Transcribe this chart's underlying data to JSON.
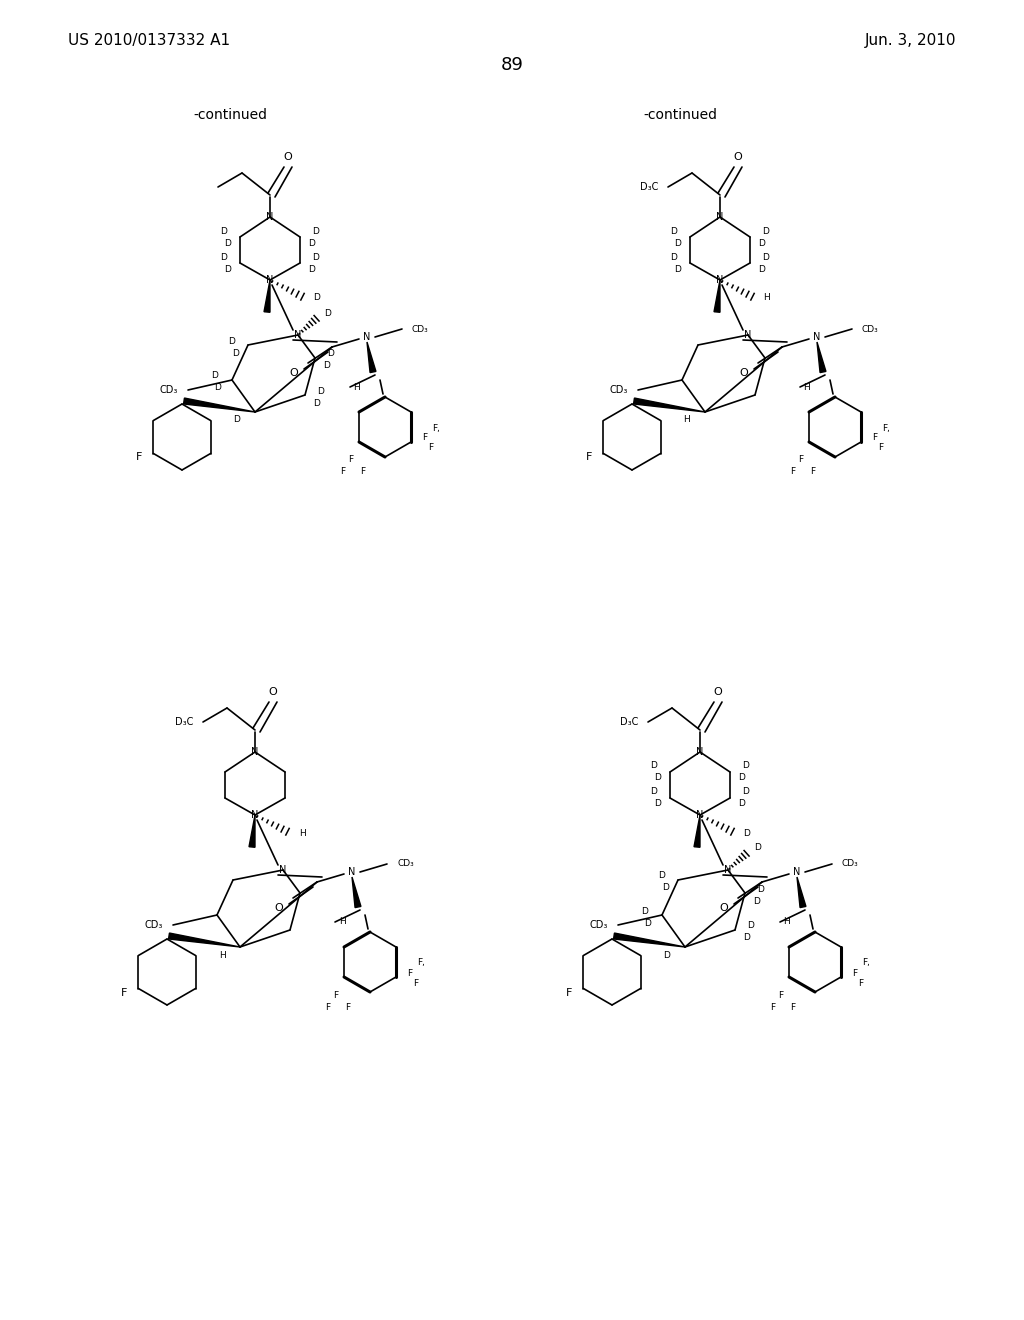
{
  "header_left": "US 2010/0137332 A1",
  "header_right": "Jun. 3, 2010",
  "page_num": "89",
  "continued": "-continued",
  "bg": "#ffffff"
}
